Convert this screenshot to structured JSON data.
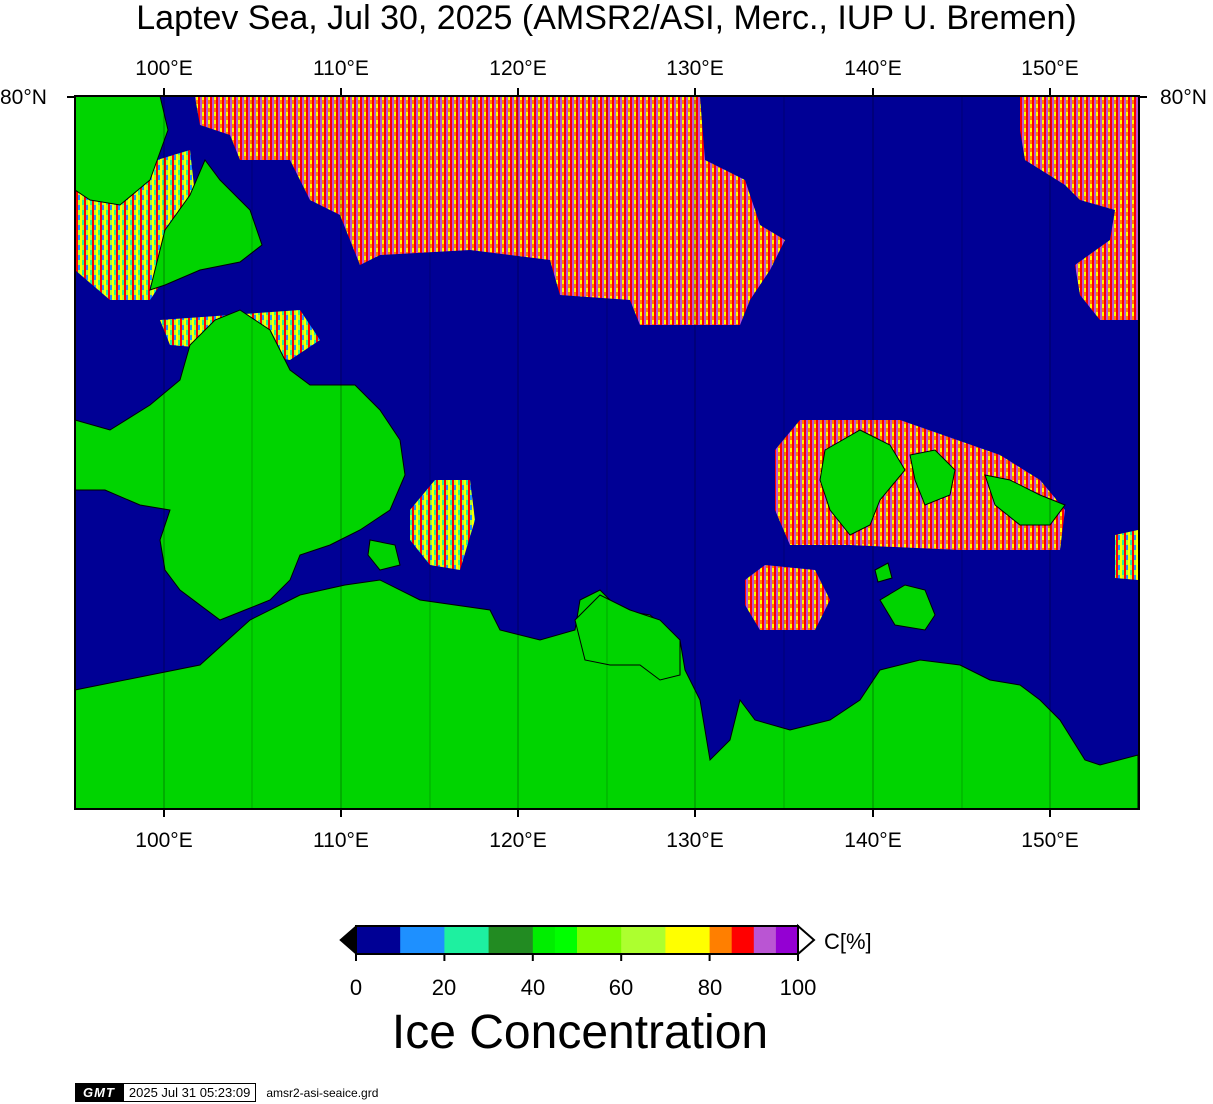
{
  "title": "Laptev Sea, Jul 30, 2025 (AMSR2/ASI, Merc., IUP U. Bremen)",
  "map": {
    "lon_ticks": [
      "100°E",
      "110°E",
      "120°E",
      "130°E",
      "140°E",
      "150°E"
    ],
    "lon_values": [
      100,
      110,
      120,
      130,
      140,
      150
    ],
    "lon_range": [
      95,
      155
    ],
    "lat_label": "80°N",
    "colors": {
      "ocean": "#000095",
      "land": "#00d400"
    }
  },
  "colorbar": {
    "labels": [
      "0",
      "20",
      "40",
      "60",
      "80",
      "100"
    ],
    "values": [
      0,
      20,
      40,
      60,
      80,
      100
    ],
    "unit": "C[%]",
    "colors": [
      "#000095",
      "#1e90ff",
      "#1ef0a0",
      "#228b22",
      "#00ee00",
      "#00ff00",
      "#7cfc00",
      "#adff2f",
      "#ffff00",
      "#ffd700",
      "#ff7f00",
      "#ff0000",
      "#ba55d3",
      "#9400d3"
    ]
  },
  "legend_title": "Ice Concentration",
  "footer": {
    "logo": "GMT",
    "timestamp": "2025 Jul 31 05:23:09",
    "filename": "amsr2-asi-seaice.grd"
  }
}
